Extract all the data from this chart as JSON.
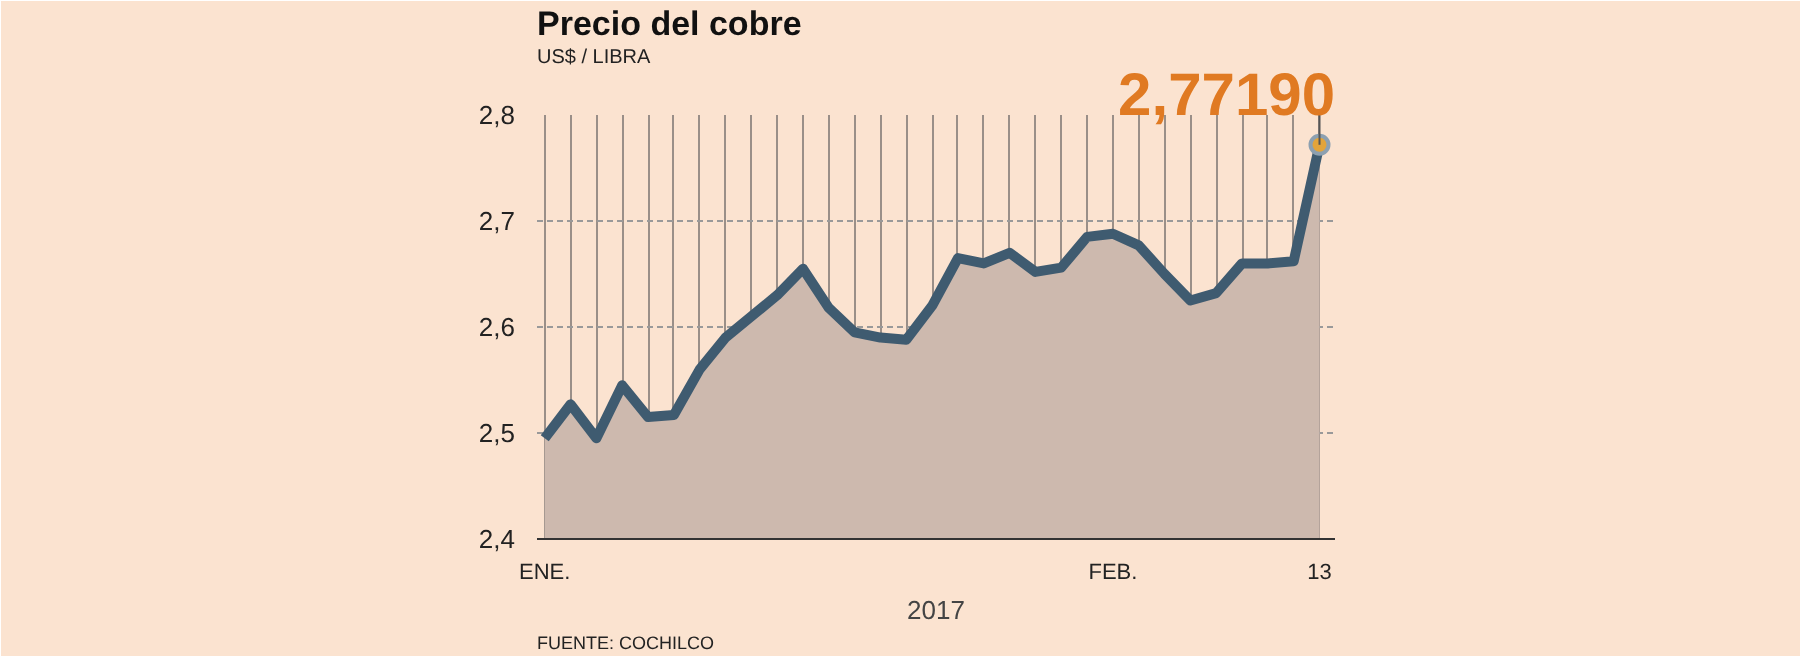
{
  "chart_data": {
    "type": "area",
    "title": "Precio del cobre",
    "subtitle": "US$ / LIBRA",
    "xlabel": "2017",
    "categories": [
      "ENE.",
      null,
      null,
      null,
      null,
      null,
      null,
      null,
      null,
      null,
      null,
      null,
      null,
      null,
      null,
      null,
      null,
      null,
      null,
      null,
      null,
      null,
      "FEB.",
      null,
      null,
      null,
      null,
      null,
      null,
      null,
      "13"
    ],
    "series": [
      {
        "color": "#3f5b70",
        "values": [
          2.495,
          2.527,
          2.495,
          2.545,
          2.515,
          2.517,
          2.56,
          2.59,
          2.61,
          2.63,
          2.655,
          2.618,
          2.595,
          2.59,
          2.588,
          2.62,
          2.665,
          2.66,
          2.67,
          2.652,
          2.656,
          2.685,
          2.688,
          2.677,
          2.65,
          2.625,
          2.632,
          2.66,
          2.66,
          2.662,
          2.7719
        ]
      }
    ],
    "ylim": [
      2.4,
      2.8
    ],
    "yticks": [
      {
        "value": 2.4,
        "label": "2,4"
      },
      {
        "value": 2.5,
        "label": "2,5"
      },
      {
        "value": 2.6,
        "label": "2,6"
      },
      {
        "value": 2.7,
        "label": "2,7"
      },
      {
        "value": 2.8,
        "label": "2,8"
      }
    ],
    "grid": true,
    "annotations": [
      {
        "text": "2,77190",
        "x": "13",
        "y": 2.7719
      },
      "FUENTE: COCHILCO"
    ]
  }
}
